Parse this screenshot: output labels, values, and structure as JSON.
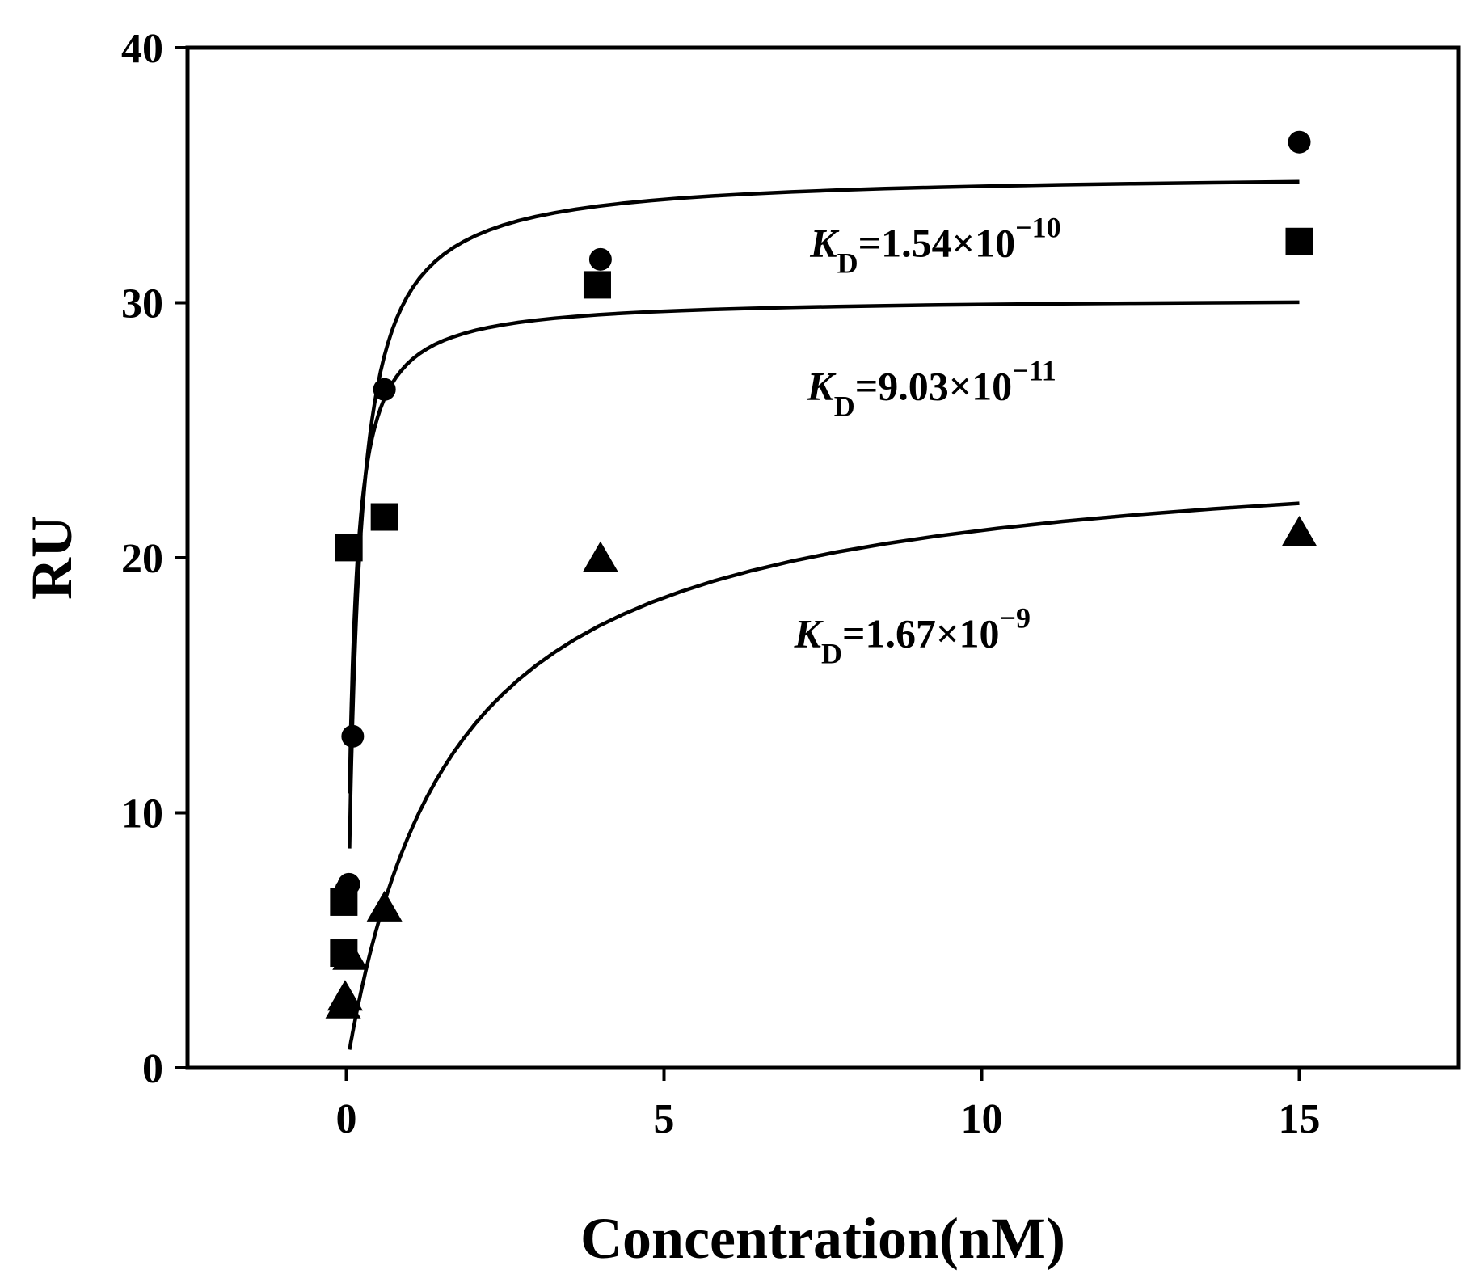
{
  "chart_data": {
    "type": "scatter",
    "xlabel": "Concentration(nM)",
    "ylabel": "RU",
    "xlim": [
      -2.5,
      17.5
    ],
    "ylim": [
      0,
      40
    ],
    "x_ticks": [
      0,
      5,
      10,
      15
    ],
    "y_ticks": [
      0,
      10,
      20,
      30,
      40
    ],
    "grid": false,
    "legend": "none",
    "series": [
      {
        "marker": "circle",
        "color": "#000000",
        "points": [
          {
            "x": 0.0,
            "y": 7.0
          },
          {
            "x": 0.04,
            "y": 7.2
          },
          {
            "x": 0.1,
            "y": 13.0
          },
          {
            "x": 0.6,
            "y": 26.6
          },
          {
            "x": 4.0,
            "y": 31.7
          },
          {
            "x": 15.0,
            "y": 36.3
          }
        ],
        "fit": {
          "bmax": 35.1,
          "kd_nm": 0.154,
          "x_end": 15.0
        },
        "kd_label": {
          "pre": "K",
          "sub": "D",
          "text": "=1.54×10",
          "exp": "−10",
          "x": 7.3,
          "y": 31.8
        }
      },
      {
        "marker": "square",
        "color": "#000000",
        "points": [
          {
            "x": -0.04,
            "y": 4.5
          },
          {
            "x": -0.04,
            "y": 6.5
          },
          {
            "x": 0.04,
            "y": 20.4
          },
          {
            "x": 0.6,
            "y": 21.6
          },
          {
            "x": 3.95,
            "y": 30.7
          },
          {
            "x": 15.0,
            "y": 32.4
          }
        ],
        "fit": {
          "bmax": 30.2,
          "kd_nm": 0.0903,
          "x_end": 15.0
        },
        "kd_label": {
          "pre": "K",
          "sub": "D",
          "text": "=9.03×10",
          "exp": "−11",
          "x": 7.25,
          "y": 26.2
        }
      },
      {
        "marker": "triangle",
        "color": "#000000",
        "points": [
          {
            "x": -0.05,
            "y": 2.4
          },
          {
            "x": -0.02,
            "y": 2.7
          },
          {
            "x": 0.06,
            "y": 4.3
          },
          {
            "x": 0.6,
            "y": 6.2
          },
          {
            "x": 4.0,
            "y": 19.9
          },
          {
            "x": 15.0,
            "y": 20.9
          }
        ],
        "fit": {
          "bmax": 24.6,
          "kd_nm": 1.67,
          "x_end": 15.0
        },
        "kd_label": {
          "pre": "K",
          "sub": "D",
          "text": "=1.67×10",
          "exp": "−9",
          "x": 7.05,
          "y": 16.5
        }
      }
    ]
  }
}
